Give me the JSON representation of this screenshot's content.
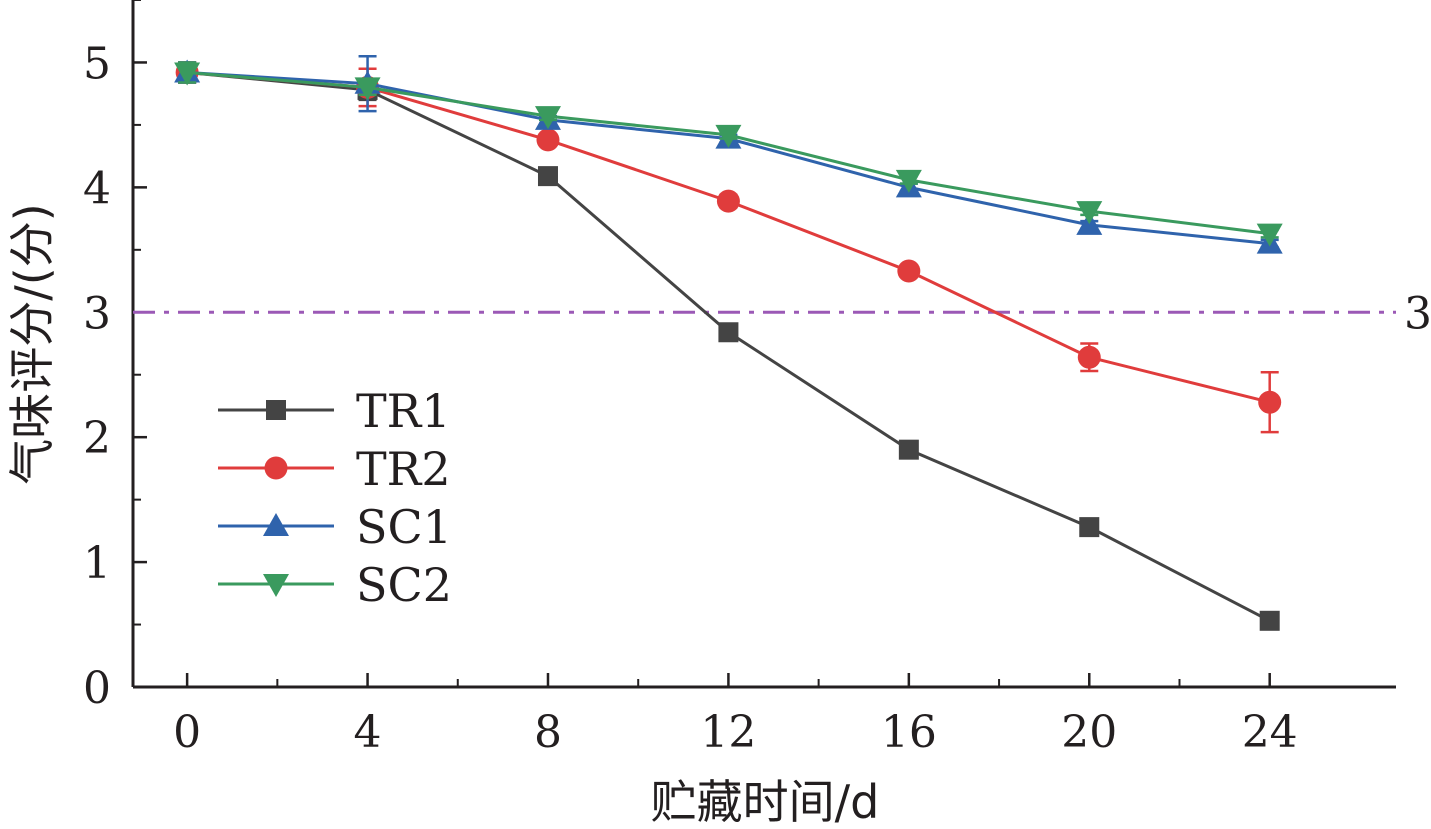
{
  "chart_data": {
    "type": "line",
    "xlabel": "贮藏时间/d",
    "ylabel": "气味评分/(分)",
    "x": [
      0,
      4,
      8,
      12,
      16,
      20,
      24
    ],
    "x_ticks": [
      "0",
      "4",
      "8",
      "12",
      "16",
      "20",
      "24"
    ],
    "y_ticks": [
      "0",
      "1",
      "2",
      "3",
      "4",
      "5"
    ],
    "xlim": [
      -1.2,
      26.8
    ],
    "ylim": [
      0,
      5.5
    ],
    "grid": false,
    "legend_position": "left-middle",
    "reference_line": {
      "y": 3,
      "label": "3",
      "color": "#9b59b6",
      "style": "dash-dot"
    },
    "series": [
      {
        "name": "TR1",
        "marker": "square",
        "color": "#444444",
        "values": [
          4.92,
          4.78,
          4.09,
          2.84,
          1.9,
          1.28,
          0.53
        ],
        "errors": [
          0.08,
          0.08,
          0.04,
          0.04,
          0.04,
          0.03,
          0.04
        ]
      },
      {
        "name": "TR2",
        "marker": "circle",
        "color": "#e03c3c",
        "values": [
          4.92,
          4.8,
          4.38,
          3.89,
          3.33,
          2.64,
          2.28
        ],
        "errors": [
          0.08,
          0.15,
          0.04,
          0.05,
          0.03,
          0.11,
          0.24
        ]
      },
      {
        "name": "SC1",
        "marker": "triangle-up",
        "color": "#2f63ac",
        "values": [
          4.92,
          4.83,
          4.54,
          4.39,
          4.0,
          3.7,
          3.55
        ],
        "errors": [
          0.08,
          0.22,
          0.03,
          0.03,
          0.03,
          0.03,
          0.03
        ]
      },
      {
        "name": "SC2",
        "marker": "triangle-down",
        "color": "#3a9a5e",
        "values": [
          4.92,
          4.8,
          4.57,
          4.42,
          4.06,
          3.81,
          3.63
        ],
        "errors": [
          0.08,
          0.06,
          0.03,
          0.03,
          0.03,
          0.03,
          0.03
        ]
      }
    ]
  }
}
